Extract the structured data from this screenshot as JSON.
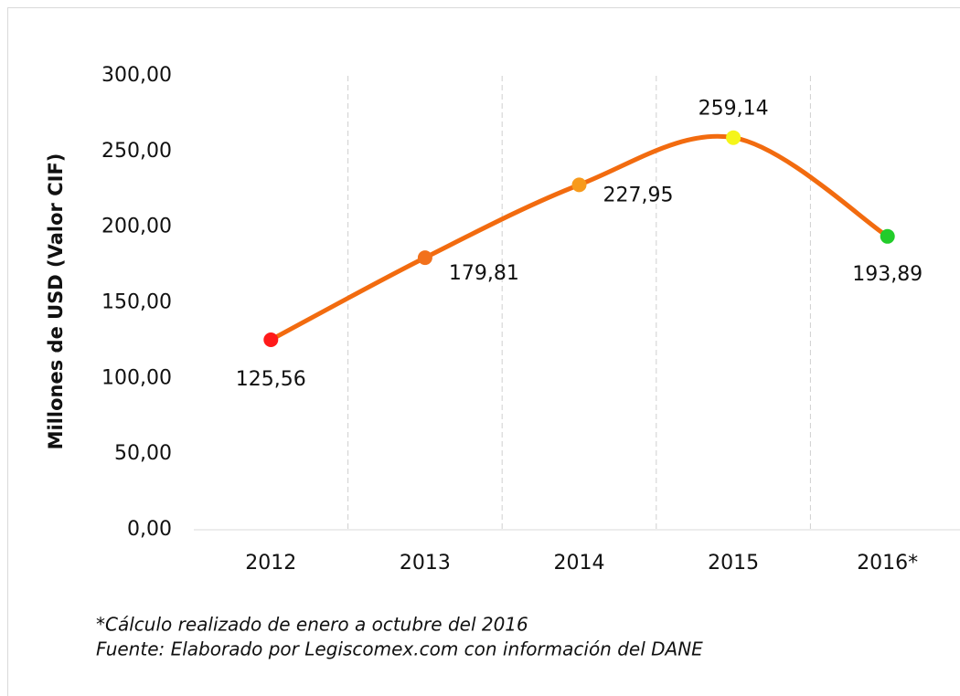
{
  "chart_data": {
    "type": "line",
    "y_label": "Millones de USD (Valor CIF)",
    "categories": [
      "2012",
      "2013",
      "2014",
      "2015",
      "2016*"
    ],
    "values": [
      125.56,
      179.81,
      227.95,
      259.14,
      193.89
    ],
    "value_labels": [
      "125,56",
      "179,81",
      "227,95",
      "259,14",
      "193,89"
    ],
    "color": "#f26b0f",
    "marker_colors": [
      "#ff1a1a",
      "#f2711c",
      "#f79a1c",
      "#f5f51a",
      "#22cc2a"
    ],
    "smooth": true,
    "ylim": [
      0,
      300
    ],
    "yticks": [
      {
        "value": 0,
        "label": "0,00"
      },
      {
        "value": 50,
        "label": "50,00"
      },
      {
        "value": 100,
        "label": "100,00"
      },
      {
        "value": 150,
        "label": "150,00"
      },
      {
        "value": 200,
        "label": "200,00"
      },
      {
        "value": 250,
        "label": "250,00"
      },
      {
        "value": 300,
        "label": "300,00"
      }
    ],
    "notes": [
      "*Cálculo realizado de enero a octubre del 2016",
      "Fuente: Elaborado por Legiscomex.com con información del DANE"
    ]
  }
}
